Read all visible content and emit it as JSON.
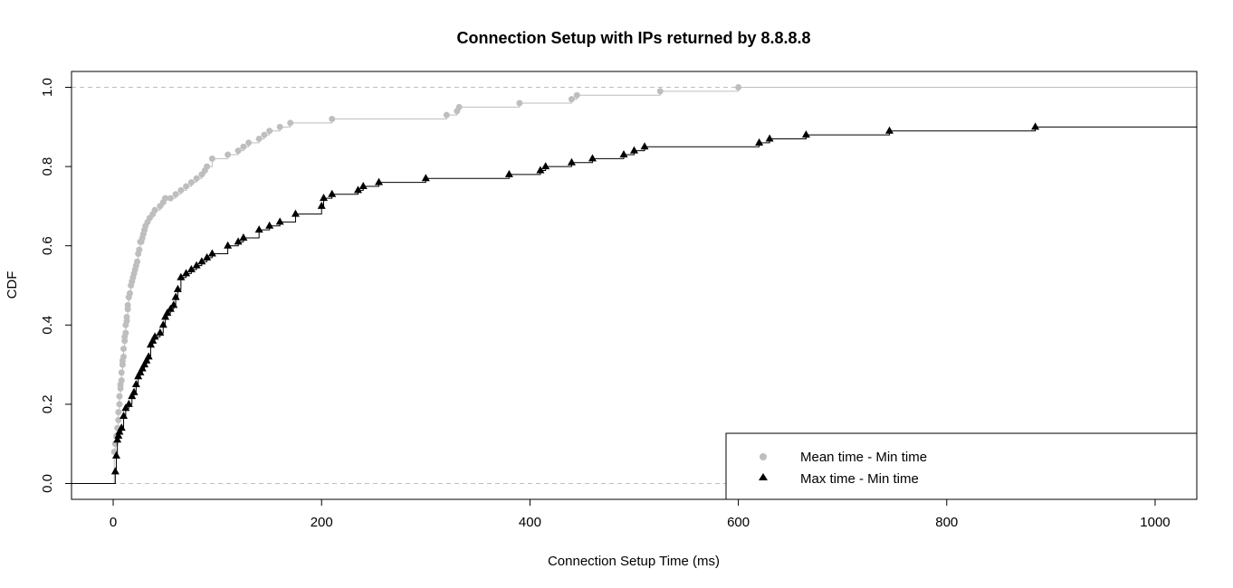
{
  "chart_data": {
    "type": "line",
    "title": "Connection Setup with IPs returned by 8.8.8.8",
    "xlabel": "Connection Setup Time (ms)",
    "ylabel": "CDF",
    "xlim": [
      -40,
      1040
    ],
    "ylim": [
      -0.04,
      1.04
    ],
    "x_ticks": [
      0,
      200,
      400,
      600,
      800,
      1000
    ],
    "x_tick_labels": [
      "0",
      "200",
      "400",
      "600",
      "800",
      "1000"
    ],
    "y_ticks": [
      0.0,
      0.2,
      0.4,
      0.6,
      0.8,
      1.0
    ],
    "y_tick_labels": [
      "0.0",
      "0.2",
      "0.4",
      "0.6",
      "0.8",
      "1.0"
    ],
    "reference_lines_y": [
      0,
      1
    ],
    "grid": false,
    "legend_position": "bottom-right",
    "series": [
      {
        "name": "Mean time - Min time",
        "color": "#bebebe",
        "marker": "circle",
        "x": [
          1,
          2,
          3,
          4,
          5,
          5,
          6,
          6,
          7,
          7,
          8,
          8,
          9,
          9,
          10,
          10,
          11,
          11,
          12,
          12,
          13,
          13,
          14,
          14,
          15,
          16,
          17,
          18,
          19,
          20,
          21,
          22,
          23,
          24,
          25,
          26,
          27,
          28,
          29,
          30,
          31,
          33,
          35,
          38,
          40,
          45,
          48,
          50,
          55,
          60,
          65,
          70,
          75,
          80,
          85,
          88,
          90,
          95,
          110,
          120,
          125,
          130,
          140,
          145,
          150,
          160,
          170,
          210,
          320,
          330,
          332,
          390,
          440,
          445,
          525,
          600
        ],
        "y": [
          0.08,
          0.1,
          0.12,
          0.14,
          0.16,
          0.18,
          0.2,
          0.22,
          0.24,
          0.25,
          0.26,
          0.28,
          0.3,
          0.31,
          0.32,
          0.34,
          0.36,
          0.37,
          0.38,
          0.4,
          0.41,
          0.42,
          0.44,
          0.45,
          0.47,
          0.48,
          0.5,
          0.51,
          0.52,
          0.53,
          0.54,
          0.55,
          0.56,
          0.58,
          0.59,
          0.61,
          0.61,
          0.62,
          0.63,
          0.64,
          0.65,
          0.66,
          0.67,
          0.68,
          0.69,
          0.7,
          0.71,
          0.72,
          0.72,
          0.73,
          0.74,
          0.75,
          0.76,
          0.77,
          0.78,
          0.79,
          0.8,
          0.82,
          0.83,
          0.84,
          0.85,
          0.86,
          0.87,
          0.88,
          0.89,
          0.9,
          0.91,
          0.92,
          0.93,
          0.94,
          0.95,
          0.96,
          0.97,
          0.98,
          0.99,
          1.0
        ]
      },
      {
        "name": "Max time - Min time",
        "color": "#000000",
        "marker": "triangle",
        "x": [
          2,
          3,
          4,
          5,
          6,
          8,
          10,
          12,
          15,
          18,
          20,
          22,
          24,
          26,
          28,
          30,
          32,
          34,
          36,
          38,
          40,
          45,
          48,
          50,
          52,
          55,
          58,
          60,
          62,
          65,
          70,
          75,
          80,
          85,
          90,
          95,
          110,
          120,
          125,
          140,
          150,
          160,
          175,
          200,
          202,
          210,
          235,
          240,
          255,
          300,
          380,
          410,
          415,
          440,
          460,
          490,
          500,
          510,
          620,
          630,
          665,
          745,
          885
        ],
        "y": [
          0.03,
          0.07,
          0.11,
          0.12,
          0.13,
          0.14,
          0.17,
          0.19,
          0.2,
          0.22,
          0.23,
          0.25,
          0.27,
          0.28,
          0.29,
          0.3,
          0.31,
          0.32,
          0.35,
          0.36,
          0.37,
          0.38,
          0.4,
          0.42,
          0.43,
          0.44,
          0.45,
          0.47,
          0.49,
          0.52,
          0.53,
          0.54,
          0.55,
          0.56,
          0.57,
          0.58,
          0.6,
          0.61,
          0.62,
          0.64,
          0.65,
          0.66,
          0.68,
          0.7,
          0.72,
          0.73,
          0.74,
          0.75,
          0.76,
          0.77,
          0.78,
          0.79,
          0.8,
          0.81,
          0.82,
          0.83,
          0.84,
          0.85,
          0.86,
          0.87,
          0.88,
          0.89,
          0.9
        ]
      }
    ]
  }
}
